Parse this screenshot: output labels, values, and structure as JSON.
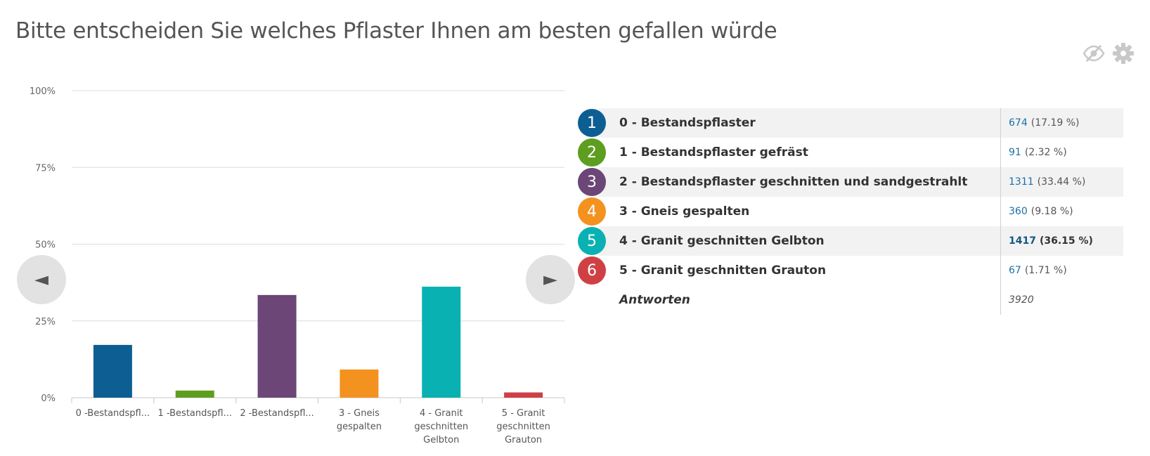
{
  "title": "Bitte entscheiden Sie welches Pflaster Ihnen am besten gefallen würde",
  "toolbar": {
    "hide_icon": "eye-slash-icon",
    "settings_icon": "gear-icon"
  },
  "navigation": {
    "prev_glyph": "◄",
    "next_glyph": "►"
  },
  "chart_data": {
    "type": "bar",
    "title": "Bitte entscheiden Sie welches Pflaster Ihnen am besten gefallen würde",
    "categories": [
      "0 -Bestandspfl...",
      "1 -Bestandspfl...",
      "2 -Bestandspfl...",
      "3 - Gneis gespalten",
      "4 - Granit geschnitten Gelbton",
      "5 - Granit geschnitten Grauton"
    ],
    "category_lines": [
      [
        "0 -Bestandspfl..."
      ],
      [
        "1 -Bestandspfl..."
      ],
      [
        "2 -Bestandspfl..."
      ],
      [
        "3 - Gneis",
        "gespalten"
      ],
      [
        "4 - Granit",
        "geschnitten",
        "Gelbton"
      ],
      [
        "5 - Granit",
        "geschnitten",
        "Grauton"
      ]
    ],
    "values": [
      17.19,
      2.32,
      33.44,
      9.18,
      36.15,
      1.71
    ],
    "colors": [
      "#0d5f93",
      "#5d9e1f",
      "#6b4677",
      "#f4921f",
      "#0ab1b3",
      "#cf4045"
    ],
    "ylim": [
      0,
      100
    ],
    "yticks": [
      0,
      25,
      50,
      75,
      100
    ],
    "ytick_labels": [
      "0%",
      "25%",
      "50%",
      "75%",
      "100%"
    ],
    "grid": true
  },
  "legend": {
    "items": [
      {
        "number": "1",
        "label": "0 - Bestandspflaster",
        "count": "674",
        "percent": "(17.19 %)",
        "color": "#0d5f93",
        "shaded": true,
        "bold": false
      },
      {
        "number": "2",
        "label": "1 - Bestandspflaster gefräst",
        "count": "91",
        "percent": "(2.32 %)",
        "color": "#5d9e1f",
        "shaded": false,
        "bold": false
      },
      {
        "number": "3",
        "label": "2 - Bestandspflaster geschnitten und sandgestrahlt",
        "count": "1311",
        "percent": "(33.44 %)",
        "color": "#6b4677",
        "shaded": true,
        "bold": false
      },
      {
        "number": "4",
        "label": "3 - Gneis gespalten",
        "count": "360",
        "percent": "(9.18 %)",
        "color": "#f4921f",
        "shaded": false,
        "bold": false
      },
      {
        "number": "5",
        "label": "4 - Granit geschnitten Gelbton",
        "count": "1417",
        "percent": "(36.15 %)",
        "color": "#0ab1b3",
        "shaded": true,
        "bold": true
      },
      {
        "number": "6",
        "label": "5 - Granit geschnitten Grauton",
        "count": "67",
        "percent": "(1.71 %)",
        "color": "#cf4045",
        "shaded": false,
        "bold": false
      }
    ],
    "total_label": "Antworten",
    "total_value": "3920"
  }
}
